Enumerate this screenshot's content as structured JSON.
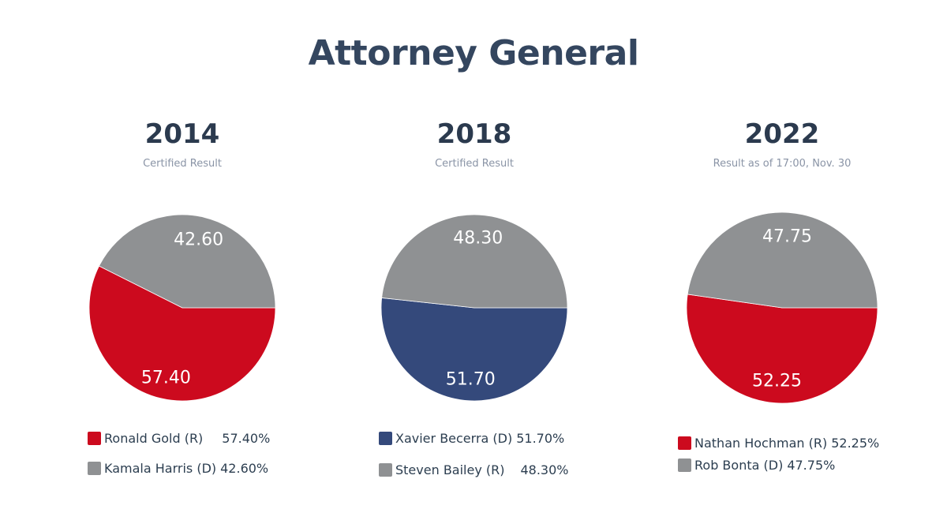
{
  "title": "Attorney General",
  "colors": {
    "red": "#cc0a1e",
    "gray": "#8f9193",
    "blue": "#34497b"
  },
  "chart_data": [
    {
      "type": "pie",
      "title": "2014",
      "subtitle": "Certified Result",
      "series": [
        {
          "name": "Ronald Gold (R)",
          "value": 57.4,
          "label": "57.40",
          "legend_value": "57.40%",
          "color": "#cc0a1e"
        },
        {
          "name": "Kamala Harris (D)",
          "value": 42.6,
          "label": "42.60",
          "legend_value": "42.60%",
          "color": "#8f9193"
        }
      ],
      "legend": "bottom"
    },
    {
      "type": "pie",
      "title": "2018",
      "subtitle": "Certified Result",
      "series": [
        {
          "name": "Xavier Becerra (D)",
          "value": 51.7,
          "label": "51.70",
          "legend_value": "51.70%",
          "color": "#34497b"
        },
        {
          "name": "Steven Bailey (R)",
          "value": 48.3,
          "label": "48.30",
          "legend_value": "48.30%",
          "color": "#8f9193"
        }
      ],
      "legend": "bottom"
    },
    {
      "type": "pie",
      "title": "2022",
      "subtitle": "Result as of 17:00, Nov. 30",
      "series": [
        {
          "name": "Nathan Hochman (R)",
          "value": 52.25,
          "label": "52.25",
          "legend_value": "52.25%",
          "color": "#cc0a1e"
        },
        {
          "name": "Rob Bonta (D)",
          "value": 47.75,
          "label": "47.75",
          "legend_value": "47.75%",
          "color": "#8f9193"
        }
      ],
      "legend": "bottom"
    }
  ]
}
